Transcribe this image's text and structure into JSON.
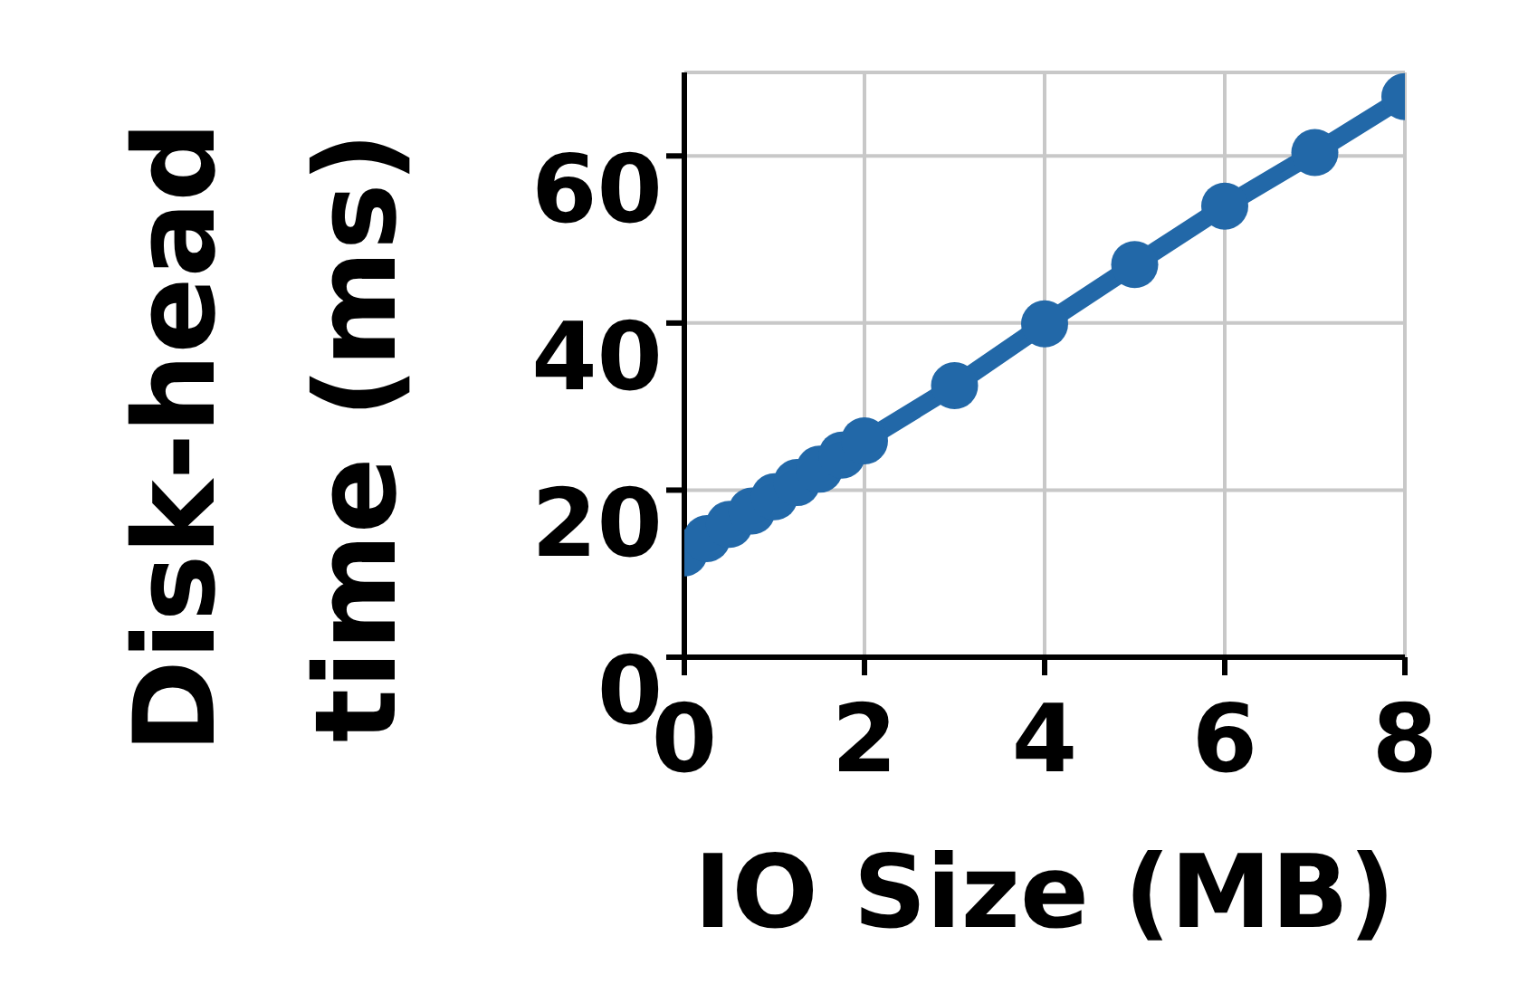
{
  "chart_data": {
    "type": "line",
    "xlabel": "IO Size (MB)",
    "ylabel": "Disk-head\ntime (ms)",
    "x": [
      0,
      0.25,
      0.5,
      0.75,
      1,
      1.25,
      1.5,
      1.75,
      2,
      3,
      4,
      5,
      6,
      7,
      8
    ],
    "series": [
      {
        "color": "#2268a8",
        "values": [
          12.5,
          14.2,
          15.9,
          17.5,
          19.2,
          20.9,
          22.5,
          24.2,
          25.9,
          32.5,
          39.9,
          47.0,
          54.0,
          60.4,
          67.1
        ]
      }
    ],
    "xlim": [
      0,
      8
    ],
    "xticks": [
      0,
      2,
      4,
      6,
      8
    ],
    "ylim": [
      0,
      70
    ],
    "yticks": [
      0,
      20,
      40,
      60
    ],
    "grid": true,
    "marker": "circle",
    "line_style": "solid"
  }
}
